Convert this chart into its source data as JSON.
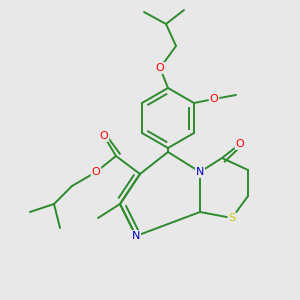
{
  "background_color": "#e8e8e8",
  "bond_color": "#2d8a2d",
  "atom_colors": {
    "O": "#ff0000",
    "N": "#0000cc",
    "S": "#cccc00",
    "C": "#2d8a2d"
  },
  "figsize": [
    3.0,
    3.0
  ],
  "dpi": 100
}
